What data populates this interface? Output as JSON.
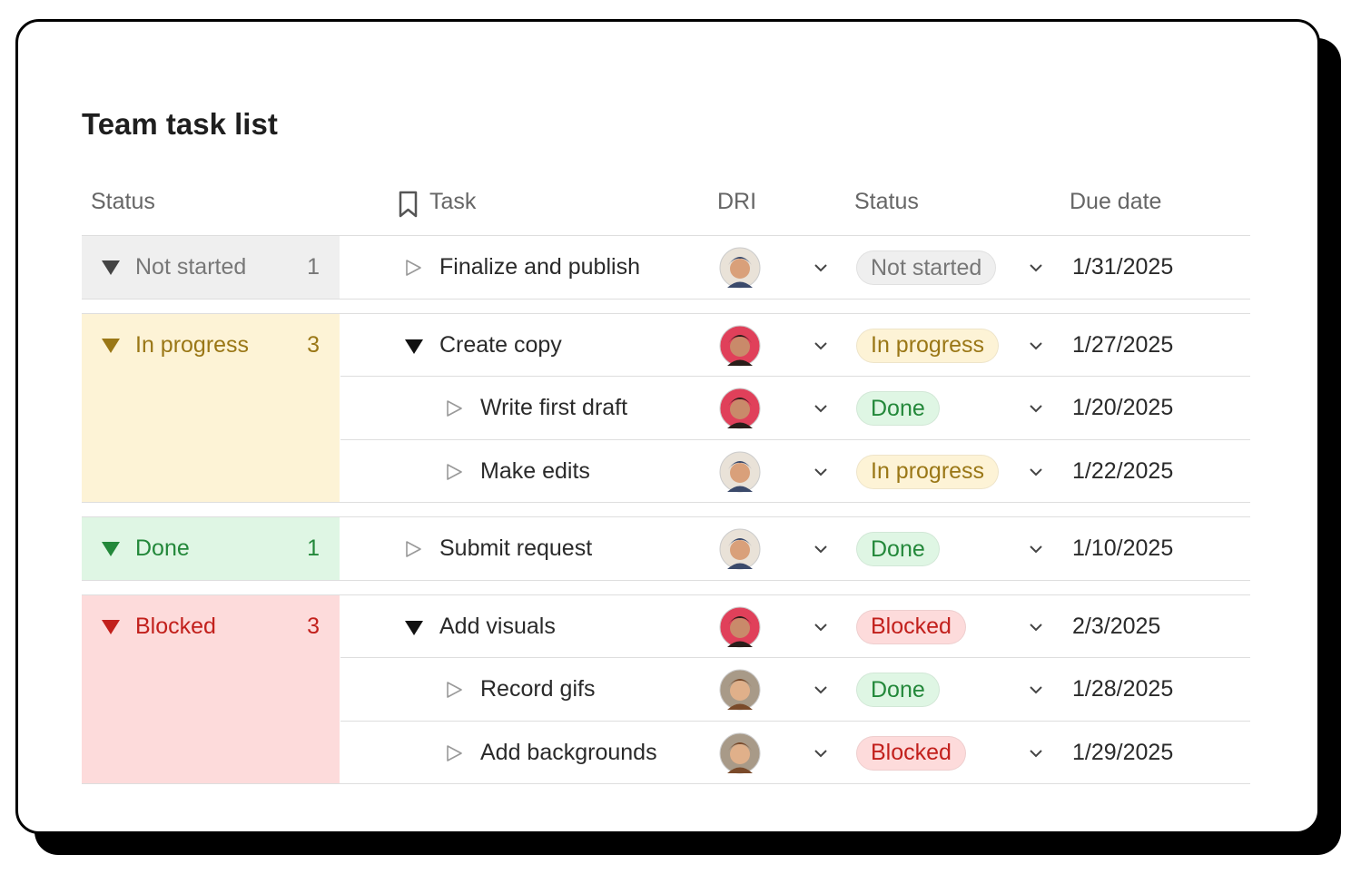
{
  "header": {
    "title": "Team task list"
  },
  "table": {
    "columns": [
      "Status",
      "Task",
      "DRI",
      "Status",
      "Due date"
    ],
    "groups": [
      {
        "name": "Not started",
        "count": 1,
        "color": "#777777",
        "background": "#efefef",
        "tasks": [
          {
            "name": "Finalize and publish",
            "status": "Not started",
            "due": "1/31/2025",
            "subtasks": []
          }
        ]
      },
      {
        "name": "In progress",
        "count": 3,
        "color": "#9a7716",
        "background": "#fdf3d6",
        "tasks": [
          {
            "name": "Create copy",
            "status": "In progress",
            "due": "1/27/2025",
            "subtasks": [
              {
                "name": "Write first draft",
                "status": "Done",
                "due": "1/20/2025"
              },
              {
                "name": "Make edits",
                "status": "In progress",
                "due": "1/22/2025"
              }
            ]
          }
        ]
      },
      {
        "name": "Done",
        "count": 1,
        "color": "#23883a",
        "background": "#dff6e4",
        "tasks": [
          {
            "name": "Submit request",
            "status": "Done",
            "due": "1/10/2025",
            "subtasks": []
          }
        ]
      },
      {
        "name": "Blocked",
        "count": 3,
        "color": "#c2201c",
        "background": "#fddbdb",
        "tasks": [
          {
            "name": "Add visuals",
            "status": "Blocked",
            "due": "2/3/2025",
            "subtasks": [
              {
                "name": "Record gifs",
                "status": "Done",
                "due": "1/28/2025"
              },
              {
                "name": "Add backgrounds",
                "status": "Blocked",
                "due": "1/29/2025"
              }
            ]
          }
        ]
      }
    ]
  }
}
